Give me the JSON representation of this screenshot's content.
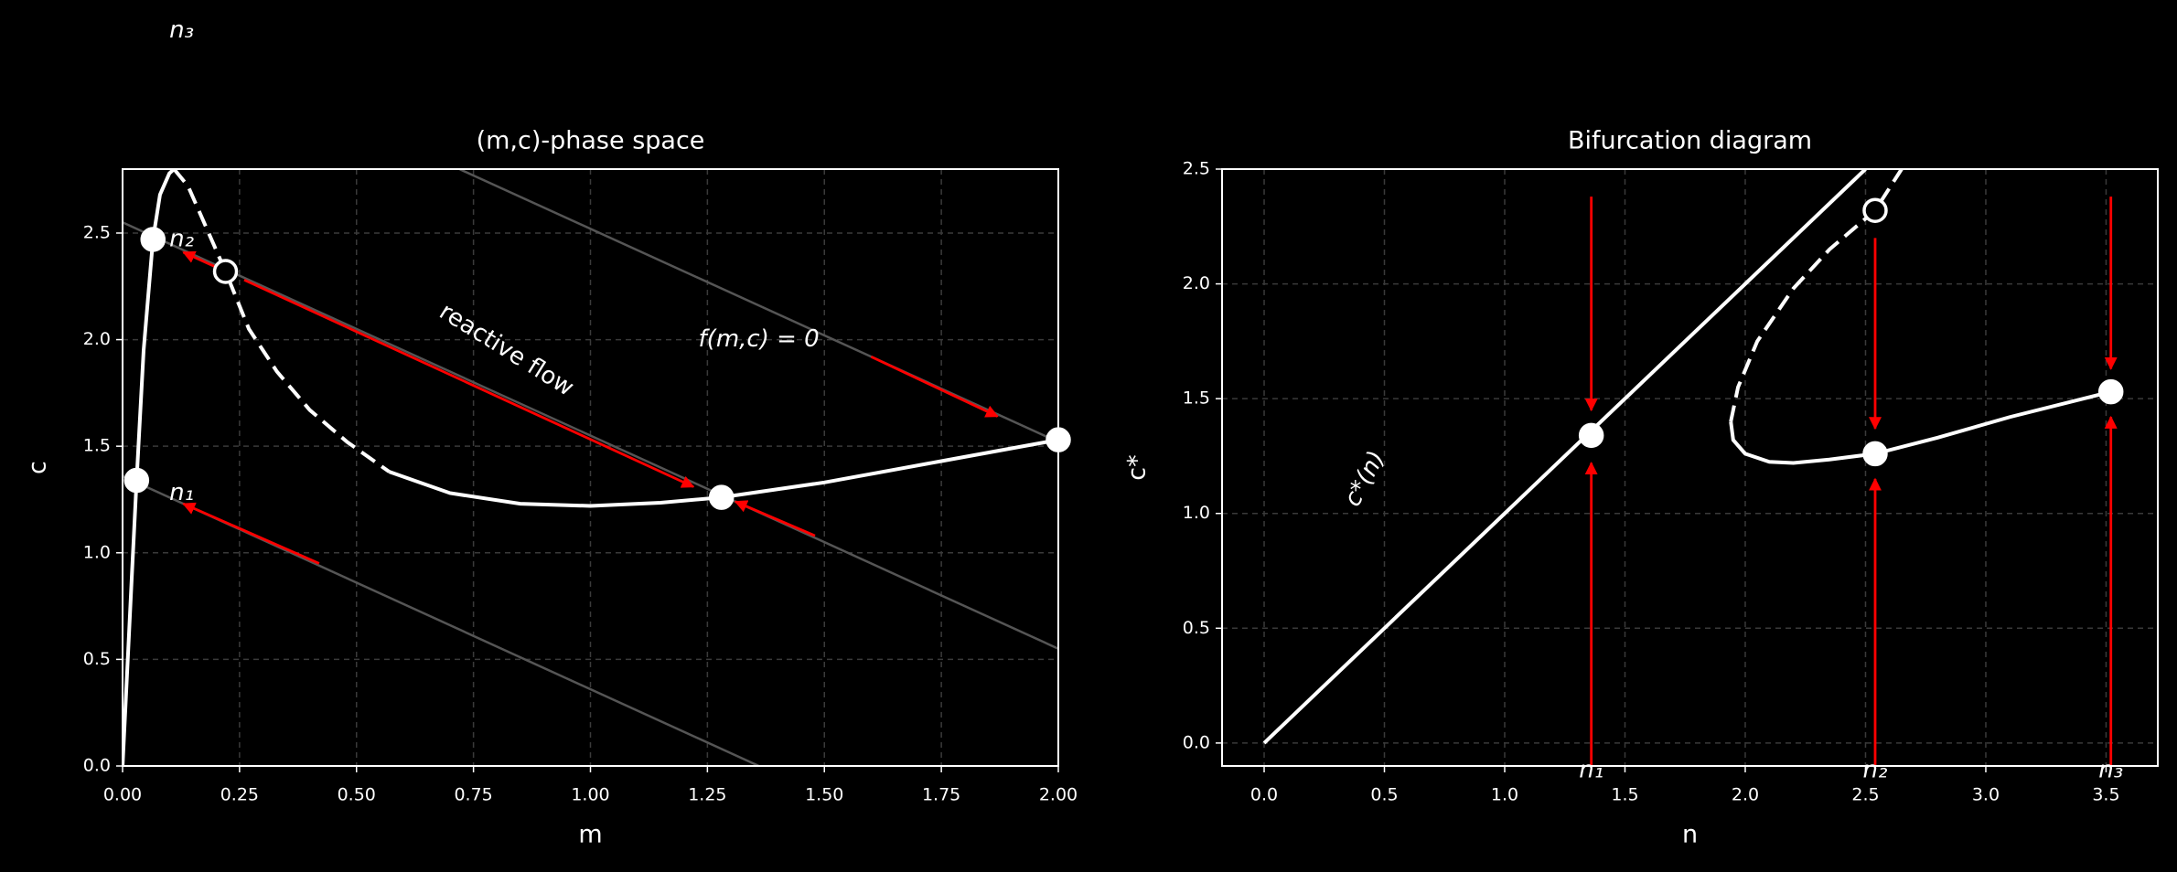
{
  "chart_data": [
    {
      "type": "line",
      "title": "(m,c)-phase space",
      "xlabel": "m",
      "ylabel": "c",
      "xlim": [
        0,
        2
      ],
      "ylim": [
        0,
        2.8
      ],
      "xticks": [
        {
          "value": 0,
          "label": "0.00"
        },
        {
          "value": 0.25,
          "label": "0.25"
        },
        {
          "value": 0.5,
          "label": "0.50"
        },
        {
          "value": 0.75,
          "label": "0.75"
        },
        {
          "value": 1,
          "label": "1.00"
        },
        {
          "value": 1.25,
          "label": "1.25"
        },
        {
          "value": 1.5,
          "label": "1.50"
        },
        {
          "value": 1.75,
          "label": "1.75"
        },
        {
          "value": 2,
          "label": "2.00"
        }
      ],
      "yticks": [
        {
          "value": 0,
          "label": "0.0"
        },
        0.5,
        {
          "value": 1,
          "label": "1.0"
        },
        1.5,
        {
          "value": 2,
          "label": "2.0"
        },
        2.5
      ],
      "grid": true,
      "series": [
        {
          "color": "#555555",
          "dashed": false,
          "x": [
            0,
            1.36
          ],
          "values": [
            1.36,
            0
          ]
        },
        {
          "color": "#555555",
          "dashed": false,
          "x": [
            0,
            2
          ],
          "values": [
            2.55,
            0.55
          ]
        },
        {
          "color": "#555555",
          "dashed": false,
          "x": [
            0.72,
            2
          ],
          "values": [
            2.8,
            1.52
          ]
        },
        {
          "color": "#ffffff",
          "dashed": false,
          "x": [
            0,
            0.01,
            0.02,
            0.03,
            0.045,
            0.065,
            0.08,
            0.1,
            0.11
          ],
          "values": [
            0,
            0.45,
            0.9,
            1.34,
            1.95,
            2.47,
            2.68,
            2.78,
            2.8
          ]
        },
        {
          "color": "#ffffff",
          "dashed": true,
          "x": [
            0.11,
            0.14,
            0.18,
            0.22,
            0.27,
            0.33,
            0.4,
            0.48,
            0.57
          ],
          "values": [
            2.8,
            2.72,
            2.52,
            2.32,
            2.05,
            1.85,
            1.67,
            1.52,
            1.38
          ]
        },
        {
          "color": "#ffffff",
          "dashed": false,
          "x": [
            0.57,
            0.7,
            0.85,
            1.0,
            1.15,
            1.28,
            1.5,
            1.75,
            2.0
          ],
          "values": [
            1.38,
            1.28,
            1.23,
            1.22,
            1.235,
            1.26,
            1.33,
            1.43,
            1.53
          ]
        }
      ],
      "arrows": [
        {
          "color": "#ff0000",
          "x": [
            1.6,
            1.87
          ],
          "y": [
            1.92,
            1.64
          ]
        },
        {
          "color": "#ff0000",
          "x": [
            0.22,
            0.13
          ],
          "y": [
            2.32,
            2.41
          ]
        },
        {
          "color": "#ff0000",
          "x": [
            0.26,
            1.22
          ],
          "y": [
            2.28,
            1.31
          ]
        },
        {
          "color": "#ff0000",
          "x": [
            0.42,
            0.13
          ],
          "y": [
            0.95,
            1.23
          ]
        },
        {
          "color": "#ff0000",
          "x": [
            1.48,
            1.31
          ],
          "y": [
            1.08,
            1.24
          ]
        }
      ],
      "points": [
        {
          "x": 0.03,
          "y": 1.34,
          "stable": true
        },
        {
          "x": 0.065,
          "y": 2.47,
          "stable": true
        },
        {
          "x": 1.28,
          "y": 1.26,
          "stable": true
        },
        {
          "x": 2.0,
          "y": 1.53,
          "stable": true
        },
        {
          "x": 0.22,
          "y": 2.32,
          "stable": false
        }
      ],
      "annotations": [
        {
          "text": "reactive flow",
          "x": 0.82,
          "y": 1.95,
          "color": "#ff0000"
        },
        {
          "text": "f(m,c) = 0",
          "x": 1.36,
          "y": 2.0,
          "color": "#ffffff"
        },
        {
          "text": "n₁",
          "x": 0.1,
          "y": 1.28,
          "color": "#888888"
        },
        {
          "text": "n₂",
          "x": 0.1,
          "y": 2.47,
          "color": "#888888"
        },
        {
          "text": "n₃",
          "x": 0.1,
          "y": 3.45,
          "color": "#888888"
        }
      ]
    },
    {
      "type": "line",
      "title": "Bifurcation diagram",
      "xlabel": "n",
      "ylabel": "c*",
      "xlim": [
        -0.175,
        3.715
      ],
      "ylim": [
        -0.1,
        2.5
      ],
      "xticks": [
        {
          "value": 0,
          "label": "0.0"
        },
        0.5,
        {
          "value": 1,
          "label": "1.0"
        },
        1.5,
        {
          "value": 2,
          "label": "2.0"
        },
        2.5,
        {
          "value": 3,
          "label": "3.0"
        },
        3.5
      ],
      "yticks": [
        {
          "value": 0,
          "label": "0.0"
        },
        0.5,
        {
          "value": 1,
          "label": "1.0"
        },
        1.5,
        {
          "value": 2,
          "label": "2.0"
        },
        2.5
      ],
      "grid": true,
      "series": [
        {
          "color": "#ffffff",
          "dashed": false,
          "x": [
            0,
            2.5
          ],
          "values": [
            0,
            2.5
          ]
        },
        {
          "color": "#ffffff",
          "dashed": false,
          "x": [
            1.94,
            1.95,
            2.0,
            2.1,
            2.2,
            2.35,
            2.54,
            2.8,
            3.1,
            3.52
          ],
          "values": [
            1.4,
            1.32,
            1.26,
            1.225,
            1.22,
            1.235,
            1.26,
            1.33,
            1.42,
            1.53
          ]
        },
        {
          "color": "#ffffff",
          "dashed": true,
          "x": [
            1.94,
            1.97,
            2.05,
            2.2,
            2.35,
            2.54,
            2.65
          ],
          "values": [
            1.4,
            1.55,
            1.75,
            1.98,
            2.15,
            2.32,
            2.5
          ]
        }
      ],
      "arrows": [
        {
          "color": "#ff0000",
          "x": [
            1.36,
            1.36
          ],
          "y": [
            2.38,
            1.45
          ]
        },
        {
          "color": "#ff0000",
          "x": [
            1.36,
            1.36
          ],
          "y": [
            -0.1,
            1.22
          ]
        },
        {
          "color": "#ff0000",
          "x": [
            2.54,
            2.54
          ],
          "y": [
            2.2,
            1.37
          ]
        },
        {
          "color": "#ff0000",
          "x": [
            2.54,
            2.54
          ],
          "y": [
            -0.1,
            1.15
          ]
        },
        {
          "color": "#ff0000",
          "x": [
            3.52,
            3.52
          ],
          "y": [
            2.38,
            1.63
          ]
        },
        {
          "color": "#ff0000",
          "x": [
            3.52,
            3.52
          ],
          "y": [
            -0.1,
            1.42
          ]
        }
      ],
      "points": [
        {
          "x": 1.36,
          "y": 1.34,
          "stable": true
        },
        {
          "x": 2.54,
          "y": 1.26,
          "stable": true
        },
        {
          "x": 3.52,
          "y": 1.53,
          "stable": true
        },
        {
          "x": 2.54,
          "y": 2.32,
          "stable": false
        }
      ],
      "annotations": [
        {
          "text": "c*(n)",
          "x": 0.42,
          "y": 1.15,
          "color": "#ffffff"
        },
        {
          "text": "n₁",
          "x": 1.36,
          "y": -0.12,
          "color": "#ffffff"
        },
        {
          "text": "n₂",
          "x": 2.54,
          "y": -0.12,
          "color": "#ffffff"
        },
        {
          "text": "n₃",
          "x": 3.52,
          "y": -0.12,
          "color": "#ffffff"
        }
      ]
    }
  ]
}
